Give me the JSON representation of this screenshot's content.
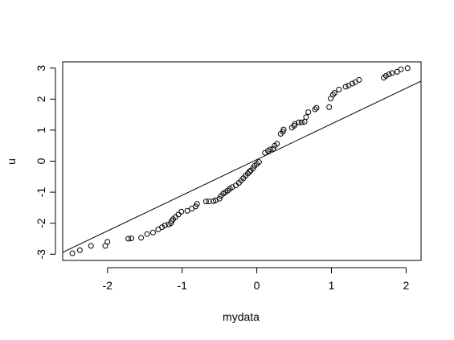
{
  "chart_data": {
    "type": "scatter",
    "title": "",
    "xlabel": "mydata",
    "ylabel": "u",
    "xlim": [
      -2.6,
      2.2
    ],
    "ylim": [
      -3.2,
      3.2
    ],
    "x_ticks": [
      -2,
      -1,
      0,
      1,
      2
    ],
    "y_ticks": [
      -3,
      -2,
      -1,
      0,
      1,
      2,
      3
    ],
    "grid": false,
    "box": true,
    "point_style": "open-circle",
    "points": [
      {
        "x": -2.47,
        "y": -2.97
      },
      {
        "x": -2.37,
        "y": -2.87
      },
      {
        "x": -2.22,
        "y": -2.73
      },
      {
        "x": -2.0,
        "y": -2.6
      },
      {
        "x": -2.03,
        "y": -2.73
      },
      {
        "x": -1.72,
        "y": -2.5
      },
      {
        "x": -1.68,
        "y": -2.49
      },
      {
        "x": -1.55,
        "y": -2.47
      },
      {
        "x": -1.47,
        "y": -2.35
      },
      {
        "x": -1.39,
        "y": -2.3
      },
      {
        "x": -1.32,
        "y": -2.2
      },
      {
        "x": -1.27,
        "y": -2.13
      },
      {
        "x": -1.23,
        "y": -2.07
      },
      {
        "x": -1.18,
        "y": -2.04
      },
      {
        "x": -1.15,
        "y": -2.0
      },
      {
        "x": -1.14,
        "y": -1.93
      },
      {
        "x": -1.12,
        "y": -1.87
      },
      {
        "x": -1.09,
        "y": -1.8
      },
      {
        "x": -1.05,
        "y": -1.72
      },
      {
        "x": -1.01,
        "y": -1.63
      },
      {
        "x": -0.93,
        "y": -1.6
      },
      {
        "x": -0.87,
        "y": -1.53
      },
      {
        "x": -0.82,
        "y": -1.46
      },
      {
        "x": -0.8,
        "y": -1.38
      },
      {
        "x": -0.68,
        "y": -1.3
      },
      {
        "x": -0.64,
        "y": -1.3
      },
      {
        "x": -0.58,
        "y": -1.29
      },
      {
        "x": -0.55,
        "y": -1.26
      },
      {
        "x": -0.5,
        "y": -1.21
      },
      {
        "x": -0.48,
        "y": -1.12
      },
      {
        "x": -0.45,
        "y": -1.05
      },
      {
        "x": -0.42,
        "y": -1.0
      },
      {
        "x": -0.39,
        "y": -0.95
      },
      {
        "x": -0.36,
        "y": -0.89
      },
      {
        "x": -0.33,
        "y": -0.84
      },
      {
        "x": -0.28,
        "y": -0.78
      },
      {
        "x": -0.24,
        "y": -0.7
      },
      {
        "x": -0.21,
        "y": -0.63
      },
      {
        "x": -0.18,
        "y": -0.55
      },
      {
        "x": -0.15,
        "y": -0.47
      },
      {
        "x": -0.12,
        "y": -0.4
      },
      {
        "x": -0.1,
        "y": -0.34
      },
      {
        "x": -0.08,
        "y": -0.3
      },
      {
        "x": -0.05,
        "y": -0.23
      },
      {
        "x": -0.03,
        "y": -0.15
      },
      {
        "x": 0.0,
        "y": -0.09
      },
      {
        "x": 0.03,
        "y": -0.03
      },
      {
        "x": 0.11,
        "y": 0.27
      },
      {
        "x": 0.15,
        "y": 0.33
      },
      {
        "x": 0.18,
        "y": 0.38
      },
      {
        "x": 0.22,
        "y": 0.4
      },
      {
        "x": 0.24,
        "y": 0.5
      },
      {
        "x": 0.27,
        "y": 0.56
      },
      {
        "x": 0.32,
        "y": 0.88
      },
      {
        "x": 0.35,
        "y": 0.95
      },
      {
        "x": 0.36,
        "y": 1.02
      },
      {
        "x": 0.47,
        "y": 1.08
      },
      {
        "x": 0.5,
        "y": 1.14
      },
      {
        "x": 0.51,
        "y": 1.2
      },
      {
        "x": 0.56,
        "y": 1.25
      },
      {
        "x": 0.6,
        "y": 1.25
      },
      {
        "x": 0.64,
        "y": 1.27
      },
      {
        "x": 0.66,
        "y": 1.42
      },
      {
        "x": 0.69,
        "y": 1.58
      },
      {
        "x": 0.78,
        "y": 1.67
      },
      {
        "x": 0.8,
        "y": 1.72
      },
      {
        "x": 0.97,
        "y": 1.74
      },
      {
        "x": 0.99,
        "y": 2.02
      },
      {
        "x": 1.02,
        "y": 2.14
      },
      {
        "x": 1.04,
        "y": 2.2
      },
      {
        "x": 1.1,
        "y": 2.31
      },
      {
        "x": 1.19,
        "y": 2.4
      },
      {
        "x": 1.23,
        "y": 2.44
      },
      {
        "x": 1.28,
        "y": 2.5
      },
      {
        "x": 1.32,
        "y": 2.55
      },
      {
        "x": 1.37,
        "y": 2.62
      },
      {
        "x": 1.7,
        "y": 2.69
      },
      {
        "x": 1.73,
        "y": 2.75
      },
      {
        "x": 1.77,
        "y": 2.8
      },
      {
        "x": 1.81,
        "y": 2.84
      },
      {
        "x": 1.88,
        "y": 2.88
      },
      {
        "x": 1.93,
        "y": 2.96
      },
      {
        "x": 2.02,
        "y": 3.0
      }
    ],
    "reference_line": {
      "intercept": 0.05,
      "slope": 1.15
    }
  }
}
